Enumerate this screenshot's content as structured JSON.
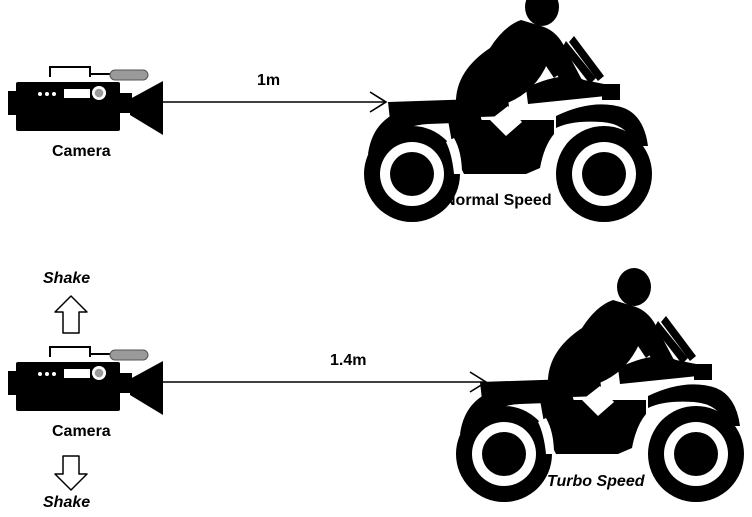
{
  "top_scenario": {
    "camera_label": "Camera",
    "distance_label": "1m",
    "bike_label": "Normal Speed"
  },
  "bottom_scenario": {
    "camera_label": "Camera",
    "distance_label": "1.4m",
    "bike_label": "Turbo Speed",
    "shake_up_label": "Shake",
    "shake_down_label": "Shake"
  },
  "icons": {
    "camera": "video-camera-icon",
    "bike": "motorcycle-rider-icon",
    "shake_up": "up-arrow-icon",
    "shake_down": "down-arrow-icon"
  },
  "colors": {
    "ink": "#000000",
    "background": "#ffffff",
    "mic": "#9a9a9a"
  }
}
